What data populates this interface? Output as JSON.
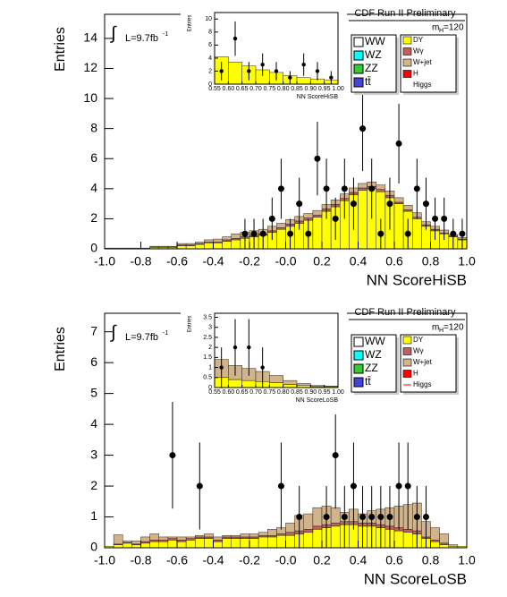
{
  "chart_data": [
    {
      "type": "histogram",
      "title": "CDF Run II Preliminary",
      "ylabel": "Entries",
      "xlabel": "NN ScoreHiSB",
      "mass_label": [
        "m",
        "H",
        "=120"
      ],
      "lumi_label": [
        "∫",
        "L=9.7fb",
        "-1"
      ],
      "xlim": [
        -1,
        1
      ],
      "ylim": [
        0,
        15.6
      ],
      "xticks": [
        {
          "value": -1,
          "label": "-1.0"
        },
        -0.8,
        -0.6,
        -0.4,
        -0.2,
        {
          "value": 0,
          "label": "-0.0"
        },
        0.2,
        0.4,
        0.6,
        0.8,
        {
          "value": 1,
          "label": "1.0"
        }
      ],
      "yticks": [
        0,
        2,
        4,
        6,
        8,
        10,
        12,
        14
      ],
      "bins": [
        -1,
        -0.95,
        -0.9,
        -0.85,
        -0.8,
        -0.75,
        -0.7,
        -0.65,
        -0.6,
        -0.55,
        -0.5,
        -0.45,
        -0.4,
        -0.35,
        -0.3,
        -0.25,
        -0.2,
        -0.15,
        -0.1,
        -0.05,
        0,
        0.05,
        0.1,
        0.15,
        0.2,
        0.25,
        0.3,
        0.35,
        0.4,
        0.45,
        0.5,
        0.55,
        0.6,
        0.65,
        0.7,
        0.75,
        0.8,
        0.85,
        0.9,
        0.95,
        1
      ],
      "series": [
        {
          "name": "DY",
          "color": "#ffff00",
          "values": [
            0.05,
            0.05,
            0.05,
            0.05,
            0.05,
            0.1,
            0.1,
            0.1,
            0.2,
            0.2,
            0.3,
            0.4,
            0.4,
            0.5,
            0.6,
            0.7,
            0.8,
            0.9,
            1.1,
            1.3,
            1.5,
            1.7,
            1.9,
            2.1,
            2.5,
            2.8,
            3.2,
            3.6,
            3.9,
            4.0,
            3.8,
            3.4,
            3.0,
            2.5,
            2.0,
            1.5,
            1.2,
            1.0,
            0.8,
            0.6
          ]
        },
        {
          "name": "Wγ",
          "color": "#c06060",
          "values": [
            0,
            0,
            0,
            0,
            0,
            0.02,
            0.02,
            0.02,
            0.05,
            0.05,
            0.05,
            0.05,
            0.05,
            0.1,
            0.1,
            0.1,
            0.1,
            0.1,
            0.1,
            0.1,
            0.15,
            0.15,
            0.15,
            0.15,
            0.15,
            0.15,
            0.15,
            0.15,
            0.15,
            0.15,
            0.15,
            0.15,
            0.1,
            0.1,
            0.1,
            0.1,
            0.1,
            0.05,
            0.05,
            0.05
          ]
        },
        {
          "name": "W+jet",
          "color": "#d2b48c",
          "values": [
            0,
            0,
            0,
            0,
            0,
            0.05,
            0.05,
            0.05,
            0.1,
            0.1,
            0.1,
            0.15,
            0.2,
            0.2,
            0.3,
            0.3,
            0.3,
            0.3,
            0.3,
            0.3,
            0.3,
            0.3,
            0.3,
            0.3,
            0.3,
            0.3,
            0.3,
            0.3,
            0.3,
            0.3,
            0.3,
            0.3,
            0.3,
            0.3,
            0.3,
            0.2,
            0.2,
            0.2,
            0.1,
            0.1
          ]
        }
      ],
      "legend_extra": [
        {
          "name": "WW",
          "color": "#ffffff"
        },
        {
          "name": "WZ",
          "color": "#00ffff"
        },
        {
          "name": "ZZ",
          "color": "#33cc33"
        },
        {
          "name": "tt̄",
          "color": "#4444dd"
        },
        {
          "name": "H",
          "color": "#ff0000"
        },
        {
          "name": "Higgs",
          "color": "none"
        }
      ],
      "data": {
        "values": [
          null,
          null,
          null,
          null,
          null,
          null,
          null,
          null,
          null,
          null,
          null,
          null,
          null,
          null,
          null,
          1,
          1,
          1,
          2,
          4,
          1,
          3,
          1,
          6,
          4,
          2,
          4,
          3,
          8,
          4,
          1,
          3,
          7,
          1,
          4,
          3,
          2,
          2,
          1,
          1
        ],
        "errors": [
          null,
          null,
          null,
          null,
          null,
          null,
          null,
          null,
          null,
          null,
          null,
          null,
          null,
          null,
          null,
          1,
          1,
          1,
          1.41,
          2,
          1,
          1.73,
          1,
          2.45,
          2,
          1.41,
          2,
          1.73,
          2.83,
          2,
          1,
          1.73,
          2.65,
          1,
          2,
          1.73,
          1.41,
          1.41,
          1,
          1
        ]
      }
    },
    {
      "type": "histogram",
      "ylabel": "Entries",
      "xlabel": "NN ScoreHiSB",
      "xlim": [
        0.55,
        1
      ],
      "ylim": [
        0,
        11
      ],
      "xticks": [
        0.55,
        {
          "value": 0.6,
          "label": "0.60"
        },
        0.65,
        {
          "value": 0.7,
          "label": "0.70"
        },
        0.75,
        {
          "value": 0.8,
          "label": "0.80"
        },
        0.85,
        {
          "value": 0.9,
          "label": "0.90"
        },
        0.95,
        {
          "value": 1,
          "label": "1.00"
        }
      ],
      "yticks": [
        0,
        2,
        4,
        6,
        8,
        10
      ],
      "bins": [
        0.55,
        0.6,
        0.65,
        0.7,
        0.75,
        0.8,
        0.85,
        0.9,
        0.95,
        1
      ],
      "series": [
        {
          "name": "DY",
          "color": "#ffff00",
          "values": [
            4.2,
            3.4,
            2.8,
            2.2,
            1.8,
            1.3,
            1.0,
            0.8,
            0.6
          ]
        }
      ],
      "data": {
        "values": [
          2,
          7,
          2,
          3,
          2,
          1,
          3,
          2,
          1
        ],
        "errors": [
          1.41,
          2.65,
          1.41,
          1.73,
          1.41,
          1,
          1.73,
          1.41,
          1
        ]
      }
    },
    {
      "type": "histogram",
      "title": "CDF Run II Preliminary",
      "ylabel": "Entries",
      "xlabel": "NN ScoreLoSB",
      "mass_label": [
        "m",
        "H",
        "=120"
      ],
      "lumi_label": [
        "∫",
        "L=9.7fb",
        "-1"
      ],
      "xlim": [
        -1,
        1
      ],
      "ylim": [
        0,
        7.6
      ],
      "xticks": [
        {
          "value": -1,
          "label": "-1.0"
        },
        -0.8,
        -0.6,
        -0.4,
        -0.2,
        {
          "value": 0,
          "label": "-0.0"
        },
        0.2,
        0.4,
        0.6,
        0.8,
        {
          "value": 1,
          "label": "1.0"
        }
      ],
      "yticks": [
        0,
        1,
        2,
        3,
        4,
        5,
        6,
        7
      ],
      "bins": [
        -1,
        -0.95,
        -0.9,
        -0.85,
        -0.8,
        -0.75,
        -0.7,
        -0.65,
        -0.6,
        -0.55,
        -0.5,
        -0.45,
        -0.4,
        -0.35,
        -0.3,
        -0.25,
        -0.2,
        -0.15,
        -0.1,
        -0.05,
        0,
        0.05,
        0.1,
        0.15,
        0.2,
        0.25,
        0.3,
        0.35,
        0.4,
        0.45,
        0.5,
        0.55,
        0.6,
        0.65,
        0.7,
        0.75,
        0.8,
        0.85,
        0.9,
        0.95,
        1
      ],
      "series": [
        {
          "name": "DY",
          "color": "#ffff00",
          "values": [
            0.05,
            0.1,
            0.15,
            0.1,
            0.15,
            0.2,
            0.2,
            0.25,
            0.2,
            0.25,
            0.3,
            0.3,
            0.2,
            0.3,
            0.3,
            0.3,
            0.3,
            0.35,
            0.35,
            0.4,
            0.4,
            0.45,
            0.5,
            0.6,
            0.65,
            0.7,
            0.75,
            0.75,
            0.7,
            0.7,
            0.65,
            0.6,
            0.55,
            0.5,
            0.45,
            0.3,
            0.2,
            0.1,
            0.05,
            0.05
          ]
        },
        {
          "name": "Wγ",
          "color": "#c06060",
          "values": [
            0,
            0.02,
            0.02,
            0.02,
            0.05,
            0.05,
            0.05,
            0.05,
            0.05,
            0.05,
            0.05,
            0.05,
            0.05,
            0.05,
            0.05,
            0.05,
            0.05,
            0.05,
            0.05,
            0.05,
            0.1,
            0.1,
            0.1,
            0.1,
            0.1,
            0.1,
            0.1,
            0.1,
            0.1,
            0.1,
            0.1,
            0.1,
            0.1,
            0.1,
            0.1,
            0.05,
            0.05,
            0.05,
            0,
            0
          ]
        },
        {
          "name": "W+jet",
          "color": "#d2b48c",
          "values": [
            0,
            0.3,
            0.05,
            0.1,
            0.15,
            0.2,
            0.1,
            0.05,
            0.1,
            0.05,
            0.05,
            0.1,
            0.1,
            0.05,
            0.05,
            0.1,
            0.1,
            0.1,
            0.2,
            0.2,
            0.3,
            0.5,
            0.5,
            0.6,
            0.6,
            0.5,
            0.3,
            0.4,
            0.3,
            0.4,
            0.5,
            0.6,
            0.7,
            0.8,
            0.9,
            0.5,
            0.4,
            0.3,
            0.05,
            0
          ]
        }
      ],
      "legend_extra": [
        {
          "name": "WW",
          "color": "#ffffff"
        },
        {
          "name": "WZ",
          "color": "#00ffff"
        },
        {
          "name": "ZZ",
          "color": "#33cc33"
        },
        {
          "name": "tt̄",
          "color": "#4444dd"
        },
        {
          "name": "H",
          "color": "#ff0000"
        },
        {
          "name": "Higgs",
          "color": "#ff0000"
        }
      ],
      "data": {
        "values": [
          null,
          null,
          null,
          null,
          null,
          null,
          null,
          3,
          null,
          null,
          2,
          null,
          null,
          null,
          null,
          null,
          null,
          null,
          null,
          2,
          null,
          1,
          null,
          null,
          1,
          3,
          1,
          2,
          1,
          1,
          1,
          1,
          2,
          2,
          1,
          1,
          null,
          null,
          null,
          null
        ],
        "errors": [
          null,
          null,
          null,
          null,
          null,
          null,
          null,
          1.73,
          null,
          null,
          1.41,
          null,
          null,
          null,
          null,
          null,
          null,
          null,
          null,
          1.41,
          null,
          1,
          null,
          null,
          1,
          1.73,
          1,
          1.41,
          1,
          1,
          1,
          1,
          1.41,
          1.41,
          1,
          1,
          null,
          null,
          null,
          null
        ]
      }
    },
    {
      "type": "histogram",
      "ylabel": "Entries",
      "xlabel": "NN ScoreLoSB",
      "xlim": [
        0.55,
        1
      ],
      "ylim": [
        0,
        3.7
      ],
      "xticks": [
        0.55,
        {
          "value": 0.6,
          "label": "0.60"
        },
        0.65,
        {
          "value": 0.7,
          "label": "0.70"
        },
        0.75,
        {
          "value": 0.8,
          "label": "0.80"
        },
        0.85,
        {
          "value": 0.9,
          "label": "0.90"
        },
        0.95,
        {
          "value": 1,
          "label": "1.00"
        }
      ],
      "yticks": [
        0,
        0.5,
        1,
        1.5,
        2,
        2.5,
        3,
        3.5
      ],
      "bins": [
        0.55,
        0.6,
        0.65,
        0.7,
        0.75,
        0.8,
        0.85,
        0.9,
        0.95,
        1
      ],
      "series": [
        {
          "name": "DY",
          "color": "#ffff00",
          "values": [
            0.5,
            0.4,
            0.35,
            0.3,
            0.25,
            0.15,
            0.1,
            0.05,
            0.05
          ]
        },
        {
          "name": "W+jet",
          "color": "#d2b48c",
          "values": [
            0.9,
            0.7,
            0.6,
            0.5,
            0.35,
            0.2,
            0.1,
            0.05,
            0.02
          ]
        }
      ],
      "data": {
        "values": [
          1,
          2,
          2,
          1,
          null,
          null,
          null,
          null,
          null
        ],
        "errors": [
          1,
          1.41,
          1.41,
          1,
          null,
          null,
          null,
          null,
          null
        ]
      }
    }
  ]
}
